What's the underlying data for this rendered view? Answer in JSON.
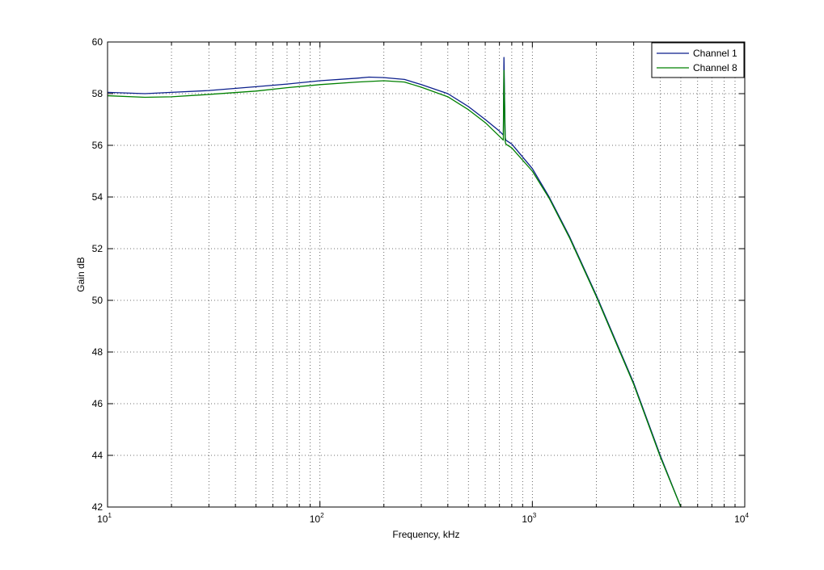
{
  "chart_data": {
    "type": "line",
    "title": "",
    "xlabel": "Frequency, kHz",
    "ylabel": "Gain dB",
    "xscale": "log",
    "xlim": [
      10,
      10000
    ],
    "ylim": [
      42,
      60
    ],
    "x_ticks": [
      {
        "base": "10",
        "exp": "1",
        "value": 10
      },
      {
        "base": "10",
        "exp": "2",
        "value": 100
      },
      {
        "base": "10",
        "exp": "3",
        "value": 1000
      },
      {
        "base": "10",
        "exp": "4",
        "value": 10000
      }
    ],
    "y_ticks": [
      "42",
      "44",
      "46",
      "48",
      "50",
      "52",
      "54",
      "56",
      "58",
      "60"
    ],
    "grid": true,
    "legend_position": "top-right",
    "series": [
      {
        "name": "Channel 1",
        "color": "#0b1f8c",
        "points": [
          [
            10,
            58.05
          ],
          [
            15,
            58.0
          ],
          [
            20,
            58.05
          ],
          [
            30,
            58.12
          ],
          [
            50,
            58.27
          ],
          [
            70,
            58.37
          ],
          [
            100,
            58.5
          ],
          [
            150,
            58.6
          ],
          [
            170,
            58.64
          ],
          [
            200,
            58.62
          ],
          [
            250,
            58.55
          ],
          [
            300,
            58.35
          ],
          [
            400,
            58.0
          ],
          [
            500,
            57.5
          ],
          [
            600,
            57.0
          ],
          [
            700,
            56.55
          ],
          [
            730,
            56.4
          ],
          [
            735,
            59.4
          ],
          [
            745,
            56.3
          ],
          [
            750,
            56.2
          ],
          [
            800,
            56.05
          ],
          [
            1000,
            55.1
          ],
          [
            1200,
            54.0
          ],
          [
            1500,
            52.45
          ],
          [
            2000,
            50.2
          ],
          [
            3000,
            46.8
          ],
          [
            4000,
            44.0
          ],
          [
            5000,
            42.0
          ]
        ]
      },
      {
        "name": "Channel 8",
        "color": "#008000",
        "points": [
          [
            10,
            57.92
          ],
          [
            15,
            57.86
          ],
          [
            20,
            57.88
          ],
          [
            30,
            57.97
          ],
          [
            50,
            58.1
          ],
          [
            70,
            58.23
          ],
          [
            100,
            58.35
          ],
          [
            150,
            58.45
          ],
          [
            200,
            58.5
          ],
          [
            250,
            58.45
          ],
          [
            300,
            58.25
          ],
          [
            400,
            57.88
          ],
          [
            500,
            57.38
          ],
          [
            600,
            56.88
          ],
          [
            700,
            56.35
          ],
          [
            730,
            56.2
          ],
          [
            735,
            58.9
          ],
          [
            745,
            56.15
          ],
          [
            750,
            56.05
          ],
          [
            800,
            55.9
          ],
          [
            1000,
            55.0
          ],
          [
            1200,
            53.95
          ],
          [
            1500,
            52.4
          ],
          [
            2000,
            50.15
          ],
          [
            3000,
            46.75
          ],
          [
            4000,
            43.95
          ],
          [
            5000,
            42.0
          ]
        ]
      }
    ]
  }
}
